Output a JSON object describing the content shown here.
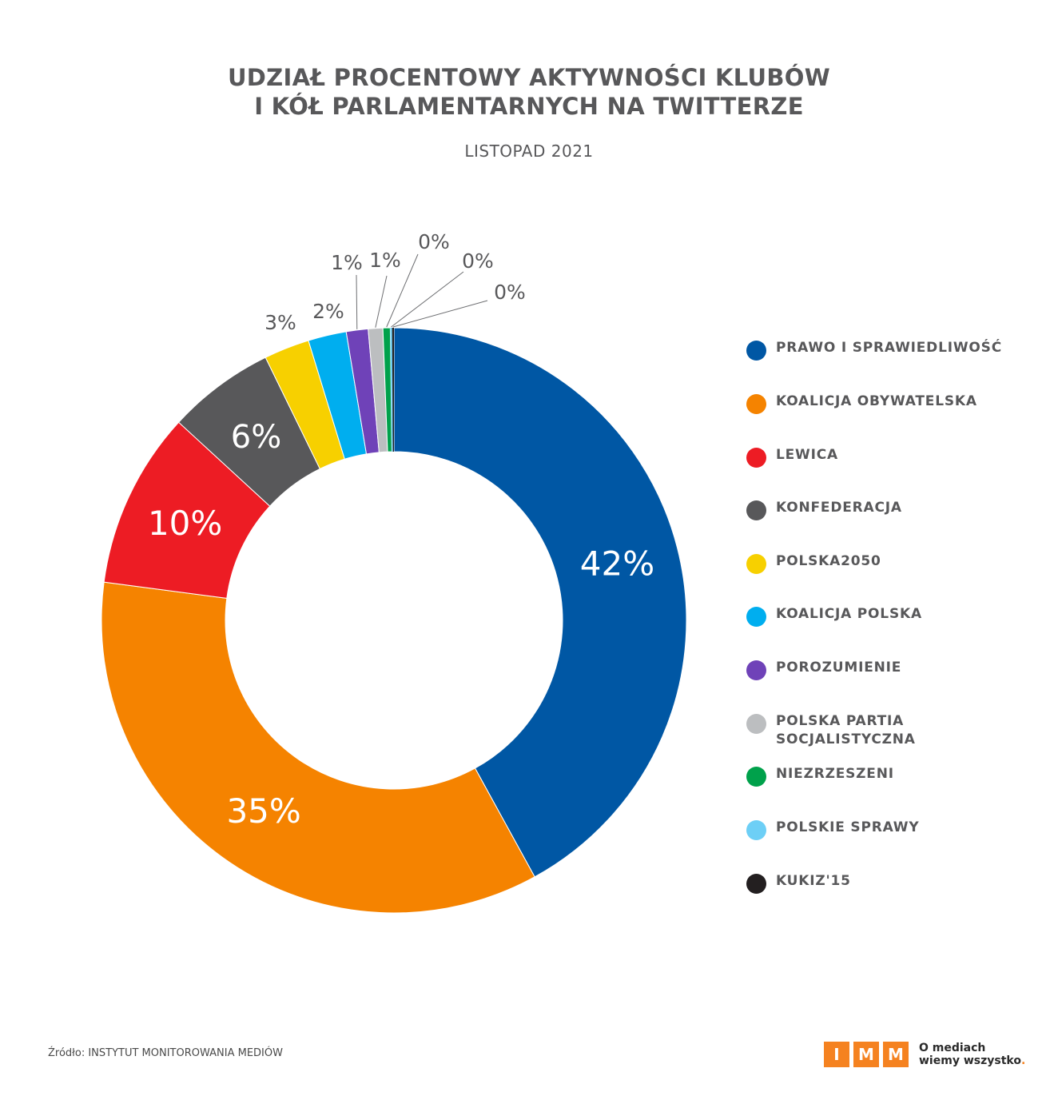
{
  "header": {
    "title_line1": "UDZIAŁ PROCENTOWY AKTYWNOŚCI KLUBÓW",
    "title_line2": "I KÓŁ PARLAMENTARNYCH NA TWITTERZE",
    "subtitle": "LISTOPAD 2021"
  },
  "chart_data": {
    "type": "pie",
    "variant": "donut",
    "title": "UDZIAŁ PROCENTOWY AKTYWNOŚCI KLUBÓW I KÓŁ PARLAMENTARNYCH NA TWITTERZE",
    "subtitle": "LISTOPAD 2021",
    "unit": "%",
    "legend_position": "right",
    "slices": [
      {
        "name": "PRAWO I SPRAWIEDLIWOŚĆ",
        "value": 41.8,
        "label": "42%",
        "color": "#0057a4"
      },
      {
        "name": "KOALICJA OBYWATELSKA",
        "value": 34.9,
        "label": "35%",
        "color": "#f58300"
      },
      {
        "name": "LEWICA",
        "value": 9.7,
        "label": "10%",
        "color": "#ed1c24"
      },
      {
        "name": "KONFEDERACJA",
        "value": 5.9,
        "label": "6%",
        "color": "#58585a"
      },
      {
        "name": "POLSKA2050",
        "value": 2.5,
        "label": "3%",
        "color": "#f7d000"
      },
      {
        "name": "KOALICJA POLSKA",
        "value": 2.1,
        "label": "2%",
        "color": "#00aeef"
      },
      {
        "name": "POROZUMIENIE",
        "value": 1.2,
        "label": "1%",
        "color": "#6f42b8"
      },
      {
        "name": "POLSKA PARTIA\n SOCJALISTYCZNA",
        "value": 0.8,
        "label": "1%",
        "color": "#bcbec0"
      },
      {
        "name": "NIEZRZESZENI",
        "value": 0.4,
        "label": "0%",
        "color": "#00a14b"
      },
      {
        "name": "POLSKIE SPRAWY",
        "value": 0.1,
        "label": "0%",
        "color": "#6dcff6"
      },
      {
        "name": "KUKIZ'15",
        "value": 0.1,
        "label": "0%",
        "color": "#231f20"
      }
    ]
  },
  "footer": {
    "source": "Źródło: INSTYTUT MONITOROWANIA MEDIÓW",
    "logo_letters": [
      "I",
      "M",
      "M"
    ],
    "logo_line1": "O mediach",
    "logo_line2": "wiemy wszystko",
    "logo_dot": "."
  }
}
